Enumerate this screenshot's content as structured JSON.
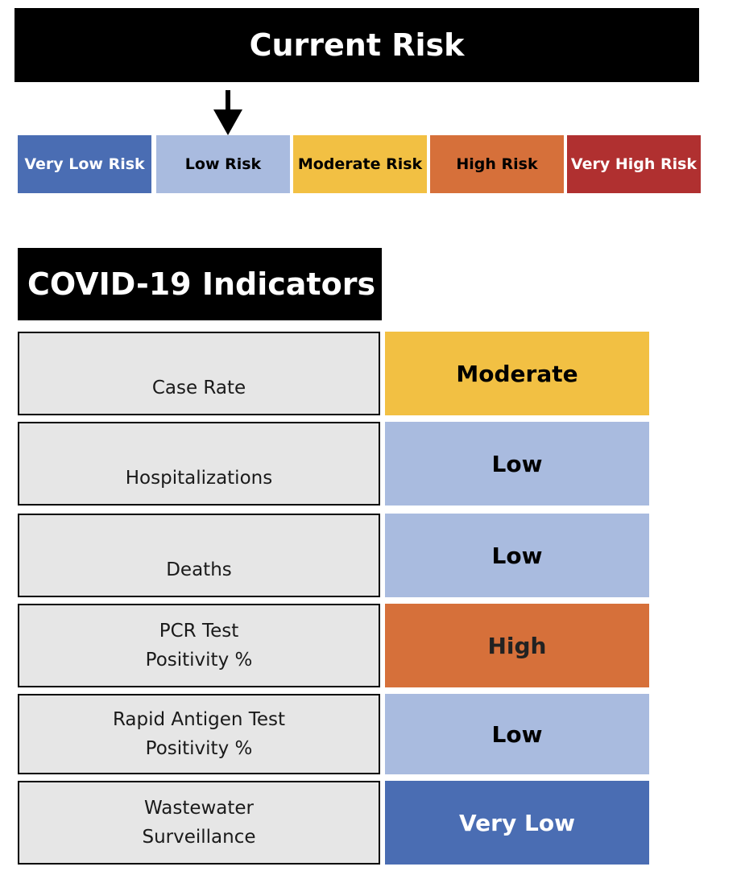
{
  "title": "Current Risk",
  "risk_scale": {
    "current_level": "Low Risk",
    "levels": [
      {
        "label": "Very Low Risk",
        "bg": "#4a6db3",
        "fg": "#ffffff"
      },
      {
        "label": "Low Risk",
        "bg": "#a9bbdf",
        "fg": "#000000"
      },
      {
        "label": "Moderate Risk",
        "bg": "#f2c043",
        "fg": "#000000"
      },
      {
        "label": "High Risk",
        "bg": "#d6703a",
        "fg": "#000000"
      },
      {
        "label": "Very High Risk",
        "bg": "#b03030",
        "fg": "#ffffff"
      }
    ]
  },
  "indicators_title": "COVID-19 Indicators",
  "indicators": [
    {
      "lines": [
        "Case Rate"
      ],
      "level": "Moderate",
      "bg": "#f2c043",
      "fg": "#000000"
    },
    {
      "lines": [
        "Hospitalizations"
      ],
      "level": "Low",
      "bg": "#a9bbdf",
      "fg": "#000000"
    },
    {
      "lines": [
        "Deaths"
      ],
      "level": "Low",
      "bg": "#a9bbdf",
      "fg": "#000000"
    },
    {
      "lines": [
        "PCR Test",
        "Positivity %"
      ],
      "level": "High",
      "bg": "#d6703a",
      "fg": "#222222"
    },
    {
      "lines": [
        "Rapid Antigen Test",
        "Positivity %"
      ],
      "level": "Low",
      "bg": "#a9bbdf",
      "fg": "#000000"
    },
    {
      "lines": [
        "Wastewater",
        "Surveillance"
      ],
      "level": "Very Low",
      "bg": "#4a6db3",
      "fg": "#ffffff"
    }
  ],
  "icons": {
    "current_level_marker": "arrow-down-icon"
  }
}
